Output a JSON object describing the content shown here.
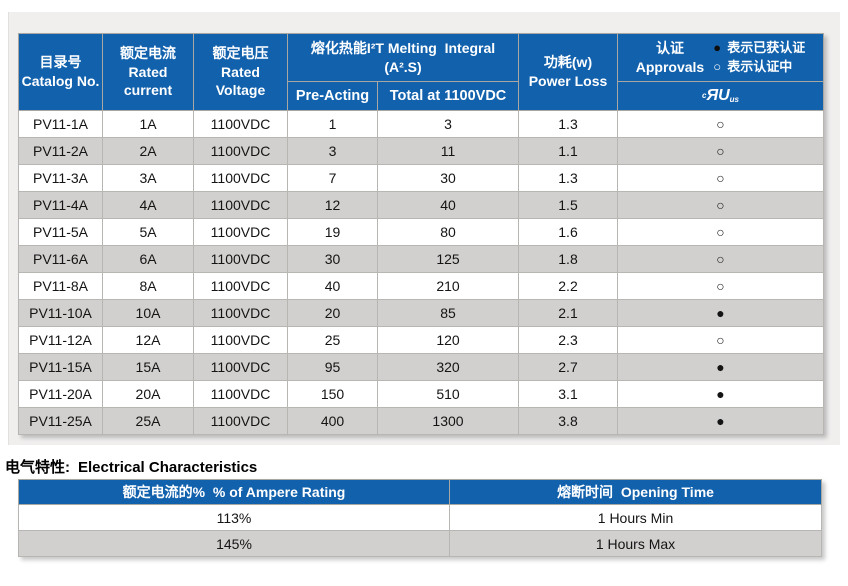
{
  "colors": {
    "header_blue": "#1261ad",
    "row_stripe": "#d2d0cf",
    "panel_bg": "#f0efee"
  },
  "main_table": {
    "headers": {
      "catalog": {
        "zh": "目录号",
        "en": "Catalog No."
      },
      "current": {
        "zh": "额定电流",
        "en_line1": "Rated",
        "en_line2": "current"
      },
      "voltage": {
        "zh": "额定电压",
        "en_line1": "Rated",
        "en_line2": "Voltage"
      },
      "melting": {
        "line1": "熔化热能I²T Melting  Integral",
        "line2": "(A².S)",
        "sub_pre": "Pre-Acting",
        "sub_total": "Total at 1100VDC"
      },
      "power": {
        "zh": "功耗(w)",
        "en": "Power Loss"
      },
      "approvals": {
        "zh": "认证",
        "en": "Approvals",
        "legend_certified_symbol": "●",
        "legend_certified_text": "表示已获认证",
        "legend_pending_symbol": "○",
        "legend_pending_text": "表示认证中",
        "ul_mark_prefix": "c",
        "ul_mark_core": "ЯU",
        "ul_mark_suffix": "us"
      }
    },
    "rows": [
      {
        "catalog": "PV11-1A",
        "current": "1A",
        "voltage": "1100VDC",
        "pre_acting": "1",
        "total": "3",
        "power_loss": "1.3",
        "approval": "○"
      },
      {
        "catalog": "PV11-2A",
        "current": "2A",
        "voltage": "1100VDC",
        "pre_acting": "3",
        "total": "11",
        "power_loss": "1.1",
        "approval": "○"
      },
      {
        "catalog": "PV11-3A",
        "current": "3A",
        "voltage": "1100VDC",
        "pre_acting": "7",
        "total": "30",
        "power_loss": "1.3",
        "approval": "○"
      },
      {
        "catalog": "PV11-4A",
        "current": "4A",
        "voltage": "1100VDC",
        "pre_acting": "12",
        "total": "40",
        "power_loss": "1.5",
        "approval": "○"
      },
      {
        "catalog": "PV11-5A",
        "current": "5A",
        "voltage": "1100VDC",
        "pre_acting": "19",
        "total": "80",
        "power_loss": "1.6",
        "approval": "○"
      },
      {
        "catalog": "PV11-6A",
        "current": "6A",
        "voltage": "1100VDC",
        "pre_acting": "30",
        "total": "125",
        "power_loss": "1.8",
        "approval": "○"
      },
      {
        "catalog": "PV11-8A",
        "current": "8A",
        "voltage": "1100VDC",
        "pre_acting": "40",
        "total": "210",
        "power_loss": "2.2",
        "approval": "○"
      },
      {
        "catalog": "PV11-10A",
        "current": "10A",
        "voltage": "1100VDC",
        "pre_acting": "20",
        "total": "85",
        "power_loss": "2.1",
        "approval": "●"
      },
      {
        "catalog": "PV11-12A",
        "current": "12A",
        "voltage": "1100VDC",
        "pre_acting": "25",
        "total": "120",
        "power_loss": "2.3",
        "approval": "○"
      },
      {
        "catalog": "PV11-15A",
        "current": "15A",
        "voltage": "1100VDC",
        "pre_acting": "95",
        "total": "320",
        "power_loss": "2.7",
        "approval": "●"
      },
      {
        "catalog": "PV11-20A",
        "current": "20A",
        "voltage": "1100VDC",
        "pre_acting": "150",
        "total": "510",
        "power_loss": "3.1",
        "approval": "●"
      },
      {
        "catalog": "PV11-25A",
        "current": "25A",
        "voltage": "1100VDC",
        "pre_acting": "400",
        "total": "1300",
        "power_loss": "3.8",
        "approval": "●"
      }
    ]
  },
  "section_heading": {
    "zh": "电气特性:",
    "en": "Electrical Characteristics"
  },
  "elec_table": {
    "headers": {
      "ampere_rating": "额定电流的%  % of Ampere Rating",
      "opening_time": "熔断时间  Opening Time"
    },
    "rows": [
      {
        "ampere_rating": "113%",
        "opening_time": "1 Hours Min"
      },
      {
        "ampere_rating": "145%",
        "opening_time": "1 Hours Max"
      }
    ]
  }
}
